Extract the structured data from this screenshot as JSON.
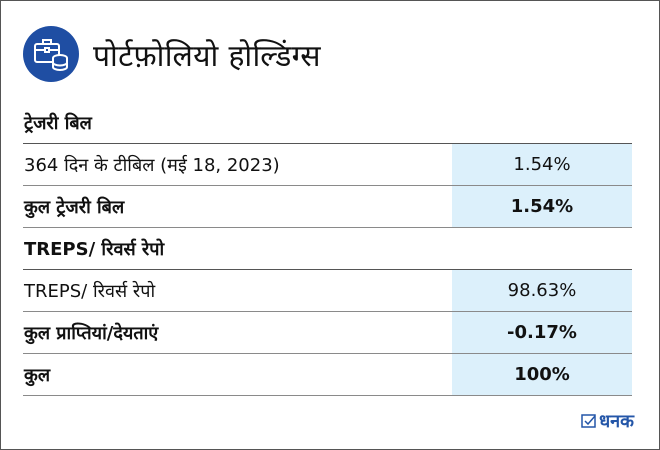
{
  "header": {
    "title": "पोर्टफ़ोलियो होल्डिंग्स",
    "icon": "briefcase-coins-icon",
    "icon_bg": "#1f4ea3"
  },
  "sections": [
    {
      "title": "ट्रेजरी बिल",
      "rows": [
        {
          "label": "364 दिन के टीबिल (मई 18, 2023)",
          "value": "1.54%"
        },
        {
          "label": "कुल ट्रेजरी बिल",
          "value": "1.54%"
        }
      ]
    },
    {
      "title": "TREPS/ रिवर्स रेपो",
      "rows": [
        {
          "label": "TREPS/ रिवर्स रेपो",
          "value": "98.63%"
        },
        {
          "label": "कुल प्राप्तियां/देयताएं",
          "value": "-0.17%"
        },
        {
          "label": "कुल",
          "value": "100%"
        }
      ]
    }
  ],
  "brand": {
    "name": "धनक",
    "icon": "checkbox-icon",
    "color": "#2456a8"
  },
  "colors": {
    "value_cell_bg": "#dcf0fb"
  }
}
